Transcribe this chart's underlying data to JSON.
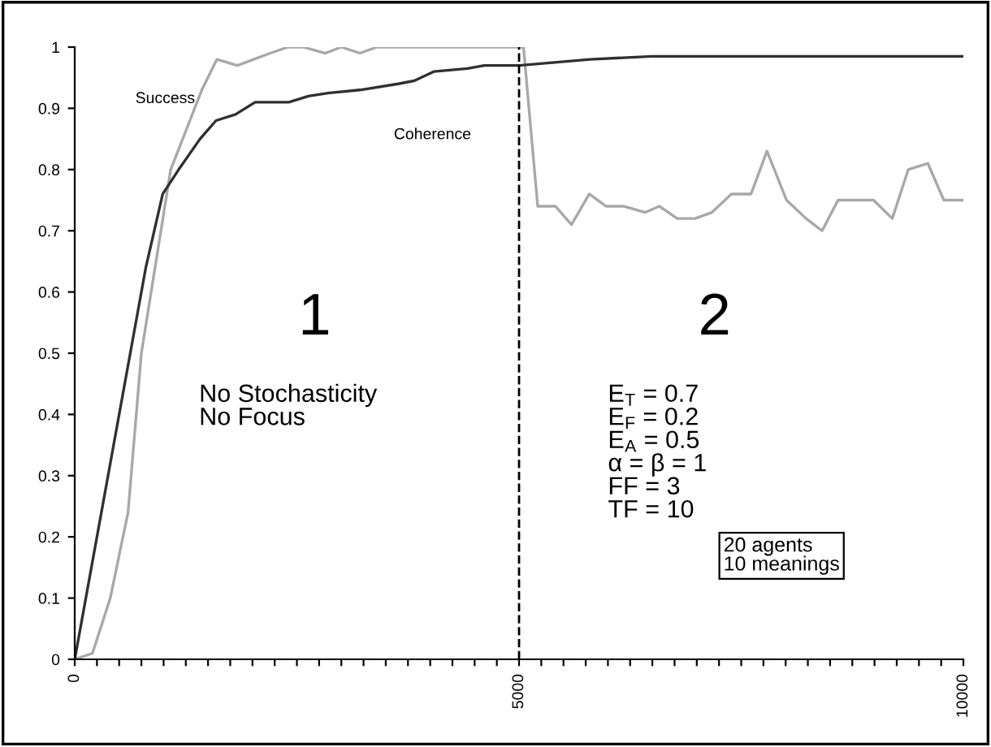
{
  "chart_data": {
    "type": "line",
    "series": [
      {
        "name": "Success",
        "color": "#a8a8a8",
        "x": [
          0,
          200,
          400,
          600,
          750,
          1080,
          1430,
          1600,
          1830,
          2200,
          2400,
          2570,
          2820,
          3000,
          3210,
          3400,
          5000,
          5050,
          5210,
          5410,
          5590,
          5790,
          5980,
          6180,
          6420,
          6580,
          6780,
          6980,
          7170,
          7390,
          7610,
          7790,
          8010,
          8230,
          8410,
          8590,
          8990,
          9200,
          9380,
          9600,
          9780,
          10000
        ],
        "values": [
          0,
          0.01,
          0.1,
          0.24,
          0.5,
          0.8,
          0.93,
          0.98,
          0.97,
          0.99,
          1,
          1,
          0.99,
          1,
          0.99,
          1,
          1,
          1,
          0.74,
          0.74,
          0.71,
          0.76,
          0.74,
          0.74,
          0.73,
          0.74,
          0.72,
          0.72,
          0.73,
          0.76,
          0.76,
          0.83,
          0.75,
          0.72,
          0.7,
          0.75,
          0.75,
          0.72,
          0.8,
          0.81,
          0.75,
          0.75
        ]
      },
      {
        "name": "Coherence",
        "color": "#303030",
        "x": [
          0,
          400,
          800,
          990,
          1170,
          1410,
          1590,
          1810,
          2030,
          2410,
          2630,
          2850,
          3210,
          3640,
          3820,
          4040,
          4420,
          4610,
          5000,
          5400,
          5800,
          6500,
          7500,
          8500,
          10000
        ],
        "values": [
          0,
          0.32,
          0.64,
          0.76,
          0.8,
          0.85,
          0.88,
          0.89,
          0.91,
          0.91,
          0.92,
          0.925,
          0.93,
          0.94,
          0.945,
          0.96,
          0.965,
          0.97,
          0.97,
          0.975,
          0.98,
          0.985,
          0.985,
          0.985,
          0.985
        ]
      }
    ],
    "xlim": [
      0,
      10000
    ],
    "xticks": [
      0,
      {
        "value": 250,
        "label": null
      },
      {
        "value": 500,
        "label": null
      },
      {
        "value": 750,
        "label": null
      },
      {
        "value": 1000,
        "label": null
      },
      {
        "value": 1250,
        "label": null
      },
      {
        "value": 1500,
        "label": null
      },
      {
        "value": 1750,
        "label": null
      },
      {
        "value": 2000,
        "label": null
      },
      {
        "value": 2250,
        "label": null
      },
      {
        "value": 2500,
        "label": null
      },
      {
        "value": 2750,
        "label": null
      },
      {
        "value": 3000,
        "label": null
      },
      {
        "value": 3250,
        "label": null
      },
      {
        "value": 3500,
        "label": null
      },
      {
        "value": 3750,
        "label": null
      },
      {
        "value": 4000,
        "label": null
      },
      {
        "value": 4250,
        "label": null
      },
      {
        "value": 4500,
        "label": null
      },
      {
        "value": 4750,
        "label": null
      },
      5000,
      {
        "value": 5250,
        "label": null
      },
      {
        "value": 5500,
        "label": null
      },
      {
        "value": 5750,
        "label": null
      },
      {
        "value": 6000,
        "label": null
      },
      {
        "value": 6250,
        "label": null
      },
      {
        "value": 6500,
        "label": null
      },
      {
        "value": 6750,
        "label": null
      },
      {
        "value": 7000,
        "label": null
      },
      {
        "value": 7250,
        "label": null
      },
      {
        "value": 7500,
        "label": null
      },
      {
        "value": 7750,
        "label": null
      },
      {
        "value": 8000,
        "label": null
      },
      {
        "value": 8250,
        "label": null
      },
      {
        "value": 8500,
        "label": null
      },
      {
        "value": 8750,
        "label": null
      },
      {
        "value": 9000,
        "label": null
      },
      {
        "value": 9250,
        "label": null
      },
      {
        "value": 9500,
        "label": null
      },
      {
        "value": 9750,
        "label": null
      },
      10000
    ],
    "ylim": [
      0,
      1
    ],
    "yticks": [
      0,
      0.1,
      0.2,
      0.3,
      0.4,
      0.5,
      0.6,
      0.7,
      0.8,
      0.9,
      1
    ],
    "grid": false,
    "legend": false,
    "marker": "none",
    "line_style": "solid",
    "ref_lines": [
      {
        "axis": "x",
        "value": 5000,
        "line_style": "dashed",
        "color": "#000000"
      }
    ],
    "annotations": [
      "1",
      "2",
      "No Stochasticity\nNo Focus",
      "E$_{T}$ = 0.7\nE$_{F}$ = 0.2\nE$_{A}$ = 0.5\nα = β = 1\nFF = 3\nTF = 10",
      "20 agents\n10 meanings"
    ]
  }
}
